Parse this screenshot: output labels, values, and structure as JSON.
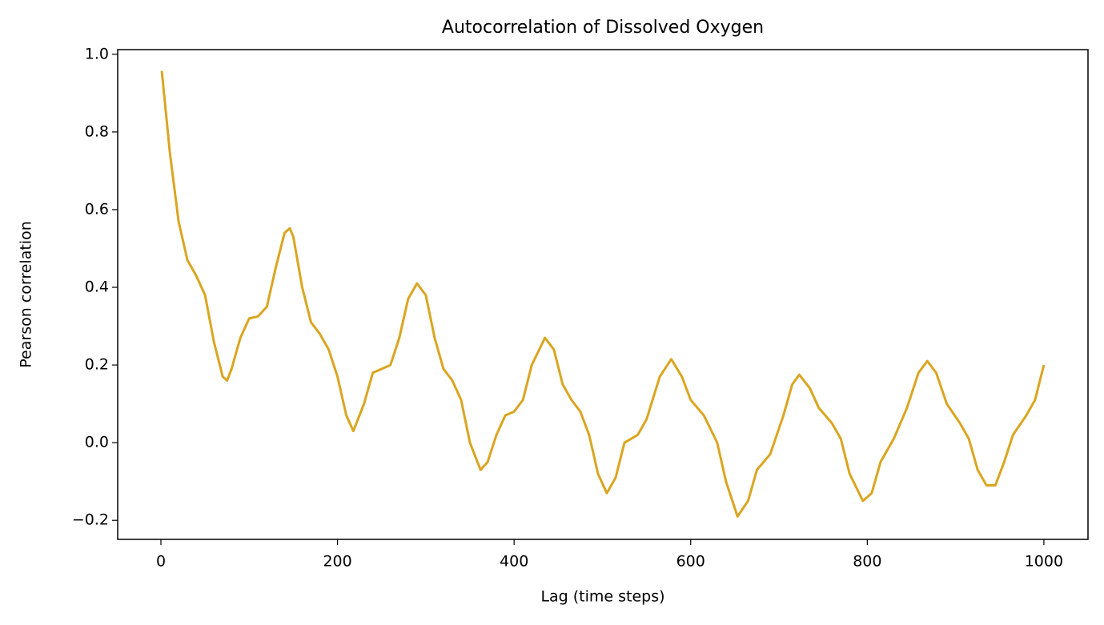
{
  "chart_data": {
    "type": "line",
    "title": "Autocorrelation of Dissolved Oxygen",
    "x_label": "Lag (time steps)",
    "y_label": "Pearson correlation",
    "x": [
      1,
      10,
      20,
      30,
      40,
      50,
      60,
      70,
      75,
      80,
      90,
      100,
      110,
      120,
      130,
      140,
      146,
      150,
      160,
      170,
      180,
      190,
      200,
      210,
      218,
      230,
      240,
      250,
      260,
      270,
      280,
      290,
      300,
      310,
      320,
      330,
      340,
      350,
      362,
      370,
      380,
      390,
      400,
      410,
      420,
      435,
      445,
      455,
      465,
      475,
      485,
      495,
      505,
      515,
      525,
      540,
      550,
      565,
      578,
      590,
      600,
      615,
      630,
      640,
      653,
      665,
      675,
      690,
      705,
      715,
      723,
      735,
      745,
      760,
      770,
      780,
      795,
      805,
      815,
      830,
      845,
      858,
      868,
      878,
      890,
      905,
      915,
      925,
      935,
      945,
      955,
      965,
      980,
      990,
      1000
    ],
    "series": [
      {
        "name": "Autocorrelation",
        "color": "#daa520",
        "values": [
          0.957,
          0.75,
          0.57,
          0.47,
          0.43,
          0.38,
          0.26,
          0.17,
          0.16,
          0.19,
          0.27,
          0.32,
          0.325,
          0.35,
          0.45,
          0.54,
          0.552,
          0.53,
          0.4,
          0.31,
          0.28,
          0.24,
          0.17,
          0.07,
          0.03,
          0.1,
          0.18,
          0.19,
          0.2,
          0.27,
          0.37,
          0.41,
          0.38,
          0.27,
          0.19,
          0.16,
          0.11,
          0.0,
          -0.07,
          -0.05,
          0.02,
          0.07,
          0.08,
          0.11,
          0.2,
          0.27,
          0.24,
          0.15,
          0.11,
          0.08,
          0.02,
          -0.08,
          -0.13,
          -0.09,
          0.0,
          0.02,
          0.06,
          0.17,
          0.215,
          0.17,
          0.11,
          0.07,
          0.0,
          -0.1,
          -0.19,
          -0.15,
          -0.07,
          -0.03,
          0.07,
          0.15,
          0.175,
          0.14,
          0.09,
          0.05,
          0.01,
          -0.08,
          -0.15,
          -0.13,
          -0.05,
          0.01,
          0.09,
          0.18,
          0.21,
          0.18,
          0.1,
          0.05,
          0.01,
          -0.07,
          -0.11,
          -0.11,
          -0.05,
          0.02,
          0.07,
          0.11,
          0.2
        ]
      }
    ],
    "xlim": [
      -48.95,
      1049.95
    ],
    "xticks": [
      0,
      200,
      400,
      600,
      800,
      1000
    ],
    "ylim": [
      -0.249,
      1.012
    ],
    "yticks": [
      {
        "value": -0.2,
        "label": "−0.2"
      },
      {
        "value": 0,
        "label": "0.0"
      },
      0.2,
      0.4,
      0.6,
      0.8,
      {
        "value": 1,
        "label": "1.0"
      }
    ]
  }
}
